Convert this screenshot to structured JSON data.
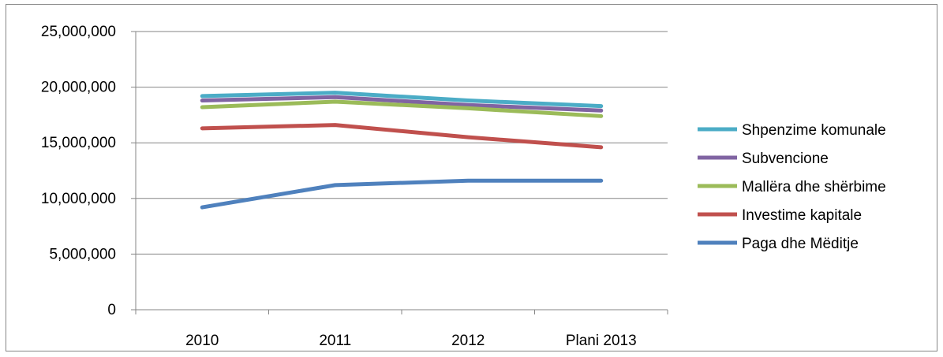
{
  "chart_data": {
    "type": "line",
    "categories": [
      "2010",
      "2011",
      "2012",
      "Plani 2013"
    ],
    "ylim": [
      0,
      25000000
    ],
    "yticks": [
      0,
      5000000,
      10000000,
      15000000,
      20000000,
      25000000
    ],
    "ytick_labels": [
      "0",
      "5,000,000",
      "10,000,000",
      "15,000,000",
      "20,000,000",
      "25,000,000"
    ],
    "grid": true,
    "legend_position": "right",
    "series": [
      {
        "name": "Shpenzime komunale",
        "color": "#4BACC6",
        "values": [
          19200000,
          19500000,
          18800000,
          18300000
        ]
      },
      {
        "name": "Subvencione",
        "color": "#8064A2",
        "values": [
          18800000,
          19100000,
          18400000,
          17900000
        ]
      },
      {
        "name": "Mallëra dhe shërbime",
        "color": "#9BBB59",
        "values": [
          18200000,
          18700000,
          18100000,
          17400000
        ]
      },
      {
        "name": "Investime kapitale",
        "color": "#C0504D",
        "values": [
          16300000,
          16600000,
          15500000,
          14600000
        ]
      },
      {
        "name": "Paga dhe Mëditje",
        "color": "#4F81BD",
        "values": [
          9200000,
          11200000,
          11600000,
          11600000
        ]
      }
    ]
  }
}
